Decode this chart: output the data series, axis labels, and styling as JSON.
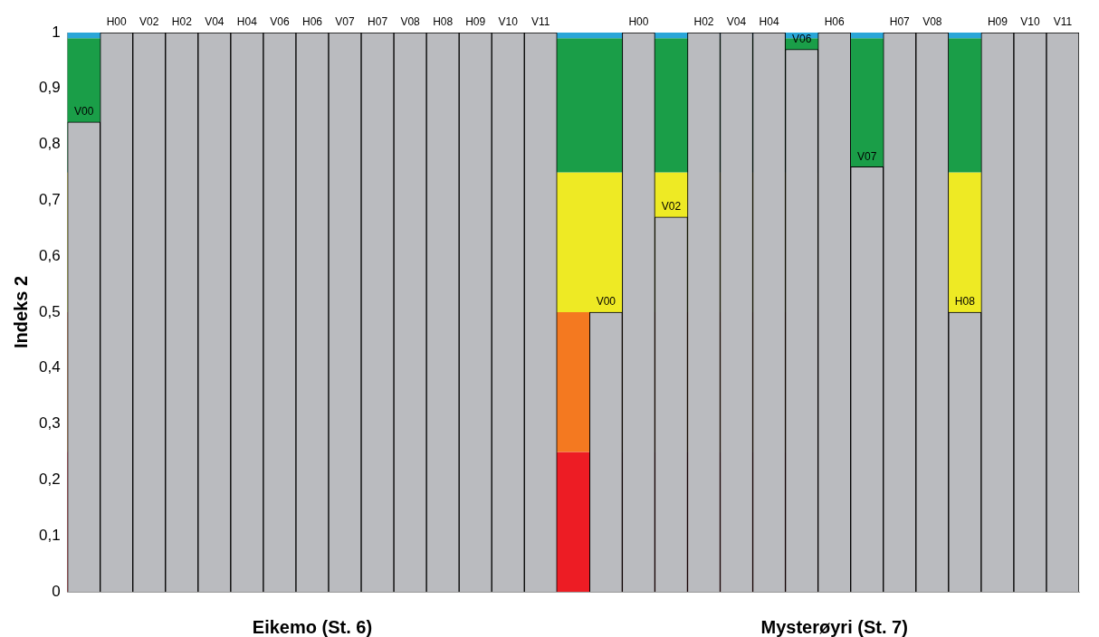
{
  "chart_data": {
    "type": "bar",
    "categories": [
      null,
      null,
      null,
      null,
      null,
      null,
      null,
      null,
      null,
      null,
      null,
      null,
      null,
      null,
      null,
      null,
      null,
      null,
      null,
      null,
      null,
      null,
      null,
      null,
      null,
      null,
      null,
      null,
      null,
      null,
      null
    ],
    "values": [
      0.84,
      1,
      1,
      1,
      1,
      1,
      1,
      1,
      1,
      1,
      1,
      1,
      1,
      1,
      1,
      null,
      0.5,
      1,
      0.67,
      1,
      1,
      1,
      0.97,
      1,
      0.76,
      1,
      1,
      0.5,
      1,
      1,
      1
    ],
    "value_labels": [
      "V00",
      "H00",
      "V02",
      "H02",
      "V04",
      "H04",
      "V06",
      "H06",
      "V07",
      "H07",
      "V08",
      "H08",
      "H09",
      "V10",
      "V11",
      null,
      "V00",
      "H00",
      "V02",
      "H02",
      "V04",
      "H04",
      "V06",
      "H06",
      "V07",
      "H07",
      "V08",
      "H08",
      "H09",
      "V10",
      "V11"
    ],
    "color": "#babbbf",
    "ylabel": "Indeks 2",
    "ylim": [
      0,
      1
    ],
    "yticks": [
      0,
      {
        "value": 0.1,
        "label": "0,1"
      },
      {
        "value": 0.2,
        "label": "0,2"
      },
      {
        "value": 0.3,
        "label": "0,3"
      },
      {
        "value": 0.4,
        "label": "0,4"
      },
      {
        "value": 0.5,
        "label": "0,5"
      },
      {
        "value": 0.6,
        "label": "0,6"
      },
      {
        "value": 0.7,
        "label": "0,7"
      },
      {
        "value": 0.8,
        "label": "0,8"
      },
      {
        "value": 0.9,
        "label": "0,9"
      },
      1
    ],
    "bands": [
      {
        "axis": "y",
        "from": 0,
        "to": 0.25,
        "color": "#ed1c24"
      },
      {
        "axis": "y",
        "from": 0.25,
        "to": 0.5,
        "color": "#f47920"
      },
      {
        "axis": "y",
        "from": 0.5,
        "to": 0.75,
        "color": "#eeea24"
      },
      {
        "axis": "y",
        "from": 0.75,
        "to": 0.99,
        "color": "#1a9e48"
      },
      {
        "axis": "y",
        "from": 0.99,
        "to": 1,
        "color": "#2aa6d8"
      }
    ],
    "annotations": [
      "Eikemo (St. 6)",
      "Mysterøyri (St. 7)"
    ],
    "tick_labels": "y",
    "grid": false
  }
}
